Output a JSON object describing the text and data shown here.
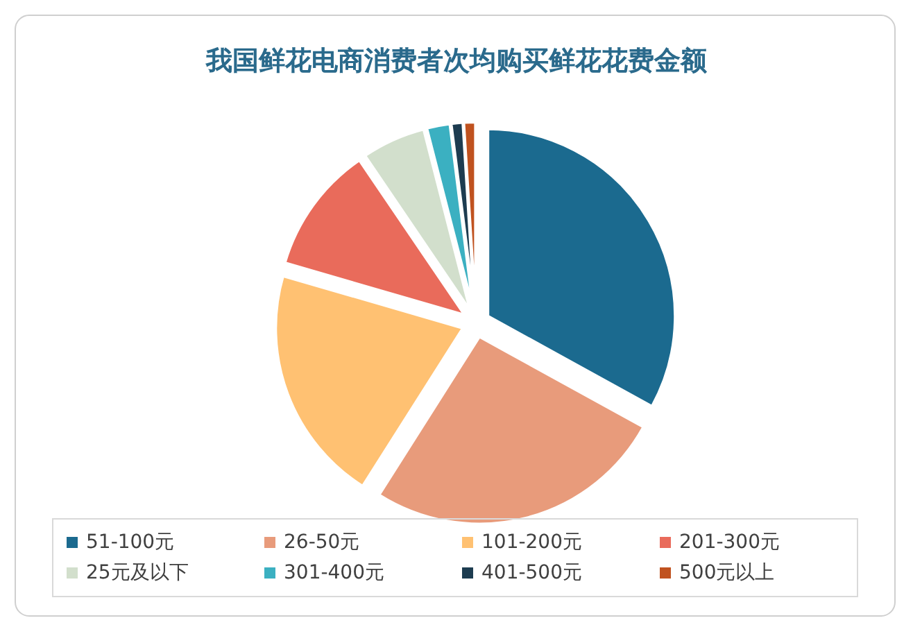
{
  "chart_data": {
    "type": "pie",
    "title": "我国鲜花电商消费者次均购买鲜花花费金额",
    "categories": [
      "51-100元",
      "26-50元",
      "101-200元",
      "201-300元",
      "25元及以下",
      "301-400元",
      "401-500元",
      "500元以上"
    ],
    "values": [
      33,
      26,
      20.5,
      11,
      5.5,
      2,
      1,
      1
    ],
    "colors": [
      "#1b6a8f",
      "#e89b7b",
      "#ffc172",
      "#e96b5b",
      "#d2dfcc",
      "#3bb0c1",
      "#1d3c50",
      "#c0521f"
    ],
    "legend": "bottom"
  }
}
